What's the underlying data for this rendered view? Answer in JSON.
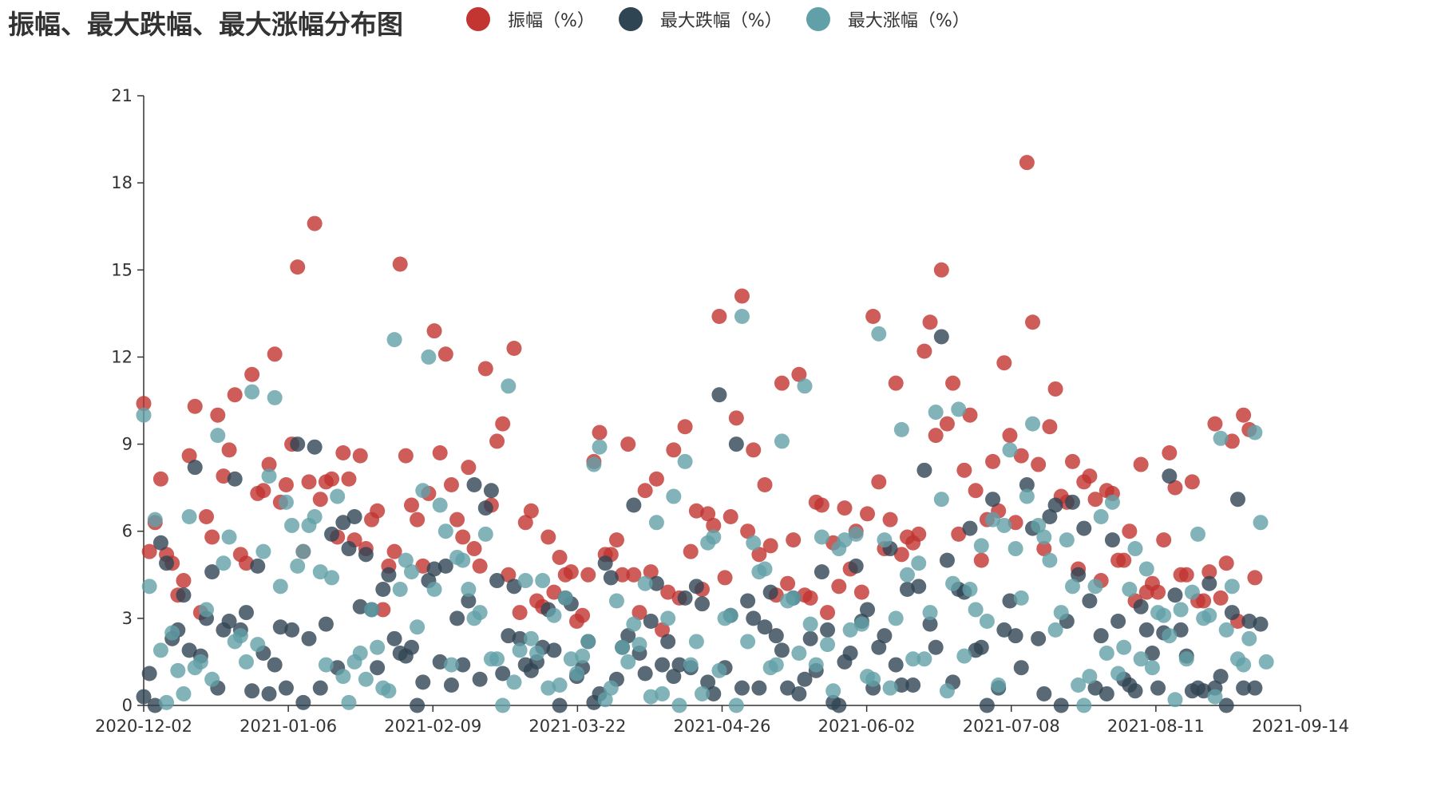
{
  "chart_data": {
    "type": "scatter",
    "title": "振幅、最大跌幅、最大涨幅分布图",
    "x_tick_labels": [
      "2020-12-02",
      "2021-01-06",
      "2021-02-09",
      "2021-03-22",
      "2021-04-26",
      "2021-06-02",
      "2021-07-08",
      "2021-08-11",
      "2021-09-14"
    ],
    "y_ticks": [
      0,
      3,
      6,
      9,
      12,
      15,
      18,
      21
    ],
    "ylim": [
      0,
      21
    ],
    "n_points": 204,
    "series": [
      {
        "name": "振幅（%）",
        "color": "#c23531",
        "values": [
          10.4,
          5.3,
          6.3,
          7.8,
          5.2,
          4.9,
          3.8,
          4.3,
          8.6,
          10.3,
          3.2,
          6.5,
          5.8,
          10.0,
          7.9,
          8.8,
          10.7,
          5.2,
          4.9,
          11.4,
          7.3,
          7.4,
          8.3,
          12.1,
          7.0,
          7.6,
          9.0,
          15.1,
          5.3,
          7.7,
          16.6,
          7.1,
          7.7,
          7.8,
          5.8,
          8.7,
          7.8,
          5.7,
          8.6,
          5.4,
          6.4,
          6.7,
          3.3,
          4.8,
          5.3,
          15.2,
          8.6,
          6.9,
          6.4,
          4.8,
          7.3,
          12.9,
          8.7,
          12.1,
          7.6,
          6.4,
          5.8,
          8.2,
          5.4,
          4.8,
          11.6,
          6.9,
          9.1,
          9.7,
          4.5,
          12.3,
          3.2,
          6.3,
          6.7,
          3.6,
          3.4,
          5.8,
          3.9,
          5.1,
          4.5,
          4.6,
          2.9,
          3.1,
          4.5,
          8.4,
          9.4,
          5.2,
          5.2,
          5.7,
          4.5,
          9.0,
          4.5,
          3.2,
          7.4,
          4.6,
          7.8,
          2.6,
          3.9,
          8.8,
          3.7,
          9.6,
          5.3,
          6.7,
          4.0,
          6.6,
          6.2,
          13.4,
          4.4,
          6.5,
          9.9,
          14.1,
          6.0,
          8.8,
          5.2,
          7.6,
          5.5,
          3.8,
          11.1,
          4.2,
          5.7,
          11.4,
          3.8,
          3.7,
          7.0,
          6.9,
          3.2,
          5.6,
          4.1,
          6.8,
          4.7,
          6.0,
          3.9,
          6.6,
          13.4,
          7.7,
          5.4,
          6.4,
          11.1,
          5.2,
          5.8,
          5.6,
          5.9,
          12.2,
          13.2,
          9.3,
          15.0,
          9.7,
          11.1,
          5.9,
          8.1,
          10.0,
          7.4,
          5.0,
          6.4,
          8.4,
          6.7,
          11.8,
          9.3,
          6.3,
          8.6,
          18.7,
          13.2,
          8.3,
          5.4,
          9.6,
          10.9,
          7.2,
          7.0,
          8.4,
          4.7,
          7.7,
          7.9,
          7.1,
          4.3,
          7.4,
          7.3,
          5.0,
          5.0,
          6.0,
          3.6,
          8.3,
          3.9,
          4.2,
          3.9,
          5.7,
          8.7,
          7.5,
          4.5,
          4.5,
          7.7,
          3.6,
          3.6,
          4.6,
          9.7,
          3.7,
          4.9,
          9.1,
          2.9,
          10.0,
          9.5,
          4.4
        ],
        "values_note": "daily amplitude"
      },
      {
        "name": "最大跌幅（%）",
        "color": "#2f4554",
        "values": [
          0.3,
          1.1,
          0.0,
          5.6,
          4.9,
          2.3,
          2.6,
          3.8,
          1.9,
          8.2,
          1.7,
          3.0,
          4.6,
          0.6,
          2.6,
          2.9,
          7.8,
          2.6,
          3.2,
          0.5,
          4.8,
          1.8,
          0.4,
          1.4,
          2.7,
          0.6,
          2.6,
          9.0,
          0.1,
          2.3,
          8.9,
          0.6,
          2.8,
          5.9,
          1.3,
          6.3,
          5.4,
          6.5,
          3.4,
          5.2,
          3.3,
          1.3,
          4.0,
          4.5,
          2.3,
          1.8,
          1.7,
          2.0,
          0.0,
          0.8,
          4.3,
          4.7,
          1.5,
          4.8,
          0.7,
          3.0,
          1.4,
          3.6,
          7.6,
          0.9,
          6.8,
          7.4,
          4.3,
          1.1,
          2.4,
          4.1,
          2.3,
          1.4,
          1.2,
          1.5,
          2.0,
          3.3,
          1.9,
          0.0,
          3.7,
          3.5,
          1.0,
          1.3,
          2.2,
          0.1,
          0.4,
          4.9,
          4.4,
          0.9,
          2.0,
          2.4,
          6.9,
          1.8,
          1.1,
          2.9,
          4.2,
          1.4,
          2.2,
          1.0,
          1.4,
          3.7,
          1.3,
          4.1,
          3.5,
          0.8,
          0.4,
          10.7,
          1.3,
          3.1,
          9.0,
          0.6,
          3.6,
          3.0,
          0.6,
          2.7,
          3.9,
          2.4,
          1.9,
          0.6,
          3.7,
          0.4,
          0.9,
          2.3,
          1.2,
          4.6,
          2.6,
          0.1,
          0.0,
          1.5,
          1.8,
          4.8,
          2.9,
          3.3,
          0.6,
          2.0,
          2.4,
          5.4,
          1.4,
          0.7,
          4.0,
          0.7,
          4.1,
          8.1,
          2.8,
          2.0,
          12.7,
          5.0,
          0.8,
          4.0,
          3.9,
          6.1,
          1.9,
          2.0,
          0.0,
          7.1,
          0.6,
          2.6,
          3.6,
          2.4,
          1.3,
          7.6,
          6.1,
          2.3,
          0.4,
          6.5,
          6.9,
          0.0,
          2.9,
          7.0,
          4.5,
          6.1,
          3.6,
          0.6,
          2.4,
          0.4,
          5.7,
          2.9,
          0.9,
          0.7,
          0.5,
          3.4,
          2.6,
          1.8,
          0.6,
          2.5,
          7.9,
          3.8,
          2.6,
          1.7,
          0.5,
          0.6,
          0.5,
          4.2,
          0.6,
          1.0,
          0.0,
          3.2,
          7.1,
          0.6,
          2.9,
          0.6,
          2.8
        ]
      },
      {
        "name": "最大涨幅（%）",
        "color": "#61a0a8",
        "values": [
          10.0,
          4.1,
          6.4,
          1.9,
          0.1,
          2.5,
          1.2,
          0.4,
          6.5,
          1.3,
          1.5,
          3.3,
          0.9,
          9.3,
          4.9,
          5.8,
          2.2,
          2.4,
          1.5,
          10.8,
          2.1,
          5.3,
          7.9,
          10.6,
          4.1,
          7.0,
          6.2,
          4.8,
          5.3,
          6.2,
          6.5,
          4.6,
          1.4,
          4.4,
          7.2,
          1.0,
          0.1,
          1.5,
          1.8,
          0.9,
          3.3,
          2.0,
          0.6,
          0.5,
          12.6,
          4.0,
          5.0,
          4.6,
          2.7,
          7.4,
          12.0,
          4.0,
          6.9,
          6.0,
          1.4,
          5.1,
          5.0,
          4.0,
          3.0,
          3.2,
          5.9,
          1.6,
          1.6,
          0.0,
          11.0,
          0.8,
          1.9,
          4.3,
          2.3,
          1.8,
          4.3,
          0.6,
          3.1,
          0.7,
          3.7,
          1.6,
          1.1,
          1.7,
          2.2,
          8.3,
          8.9,
          0.2,
          0.6,
          3.6,
          2.0,
          1.5,
          2.8,
          2.1,
          4.2,
          0.3,
          6.3,
          0.4,
          3.0,
          7.2,
          0.0,
          8.4,
          1.4,
          2.2,
          0.4,
          5.6,
          5.8,
          1.2,
          3.0,
          3.1,
          0.0,
          13.4,
          2.2,
          5.6,
          4.6,
          4.7,
          1.3,
          1.4,
          9.1,
          3.6,
          3.7,
          1.8,
          11.0,
          2.8,
          1.4,
          5.8,
          2.1,
          0.5,
          5.4,
          5.7,
          2.6,
          5.9,
          2.8,
          1.0,
          0.9,
          12.8,
          5.7,
          0.6,
          3.0,
          9.5,
          4.5,
          1.6,
          4.9,
          1.6,
          3.2,
          10.1,
          7.1,
          0.5,
          4.2,
          10.2,
          1.7,
          4.0,
          3.3,
          5.5,
          2.9,
          6.4,
          0.7,
          6.2,
          8.8,
          5.4,
          3.7,
          7.2,
          9.7,
          6.2,
          5.8,
          5.0,
          2.6,
          3.2,
          5.7,
          4.1,
          0.7,
          0.0,
          1.0,
          4.1,
          6.5,
          1.8,
          7.0,
          1.1,
          2.0,
          4.0,
          5.4,
          1.6,
          4.7,
          1.3,
          3.2,
          3.1,
          2.4,
          0.2,
          3.3,
          1.6,
          3.9,
          5.9,
          3.0,
          3.1,
          0.3,
          9.2,
          2.6,
          4.1,
          1.6,
          1.4,
          2.3,
          9.4,
          6.3,
          1.5
        ]
      }
    ]
  }
}
